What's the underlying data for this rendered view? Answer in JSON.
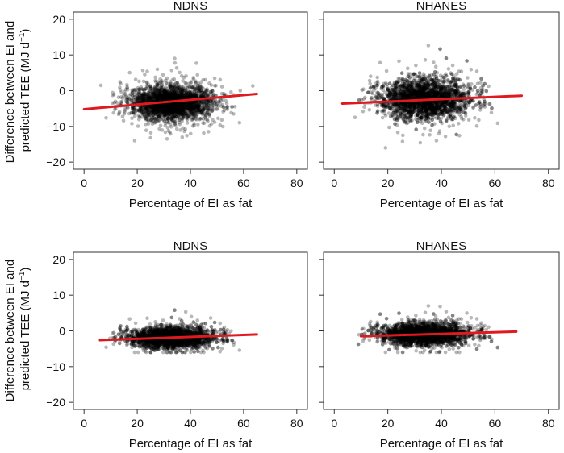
{
  "figure": {
    "y_axis_label_line1": "Difference between EI and",
    "y_axis_label_line2": "predicted TEE (MJ d",
    "y_axis_label_sup": "−1",
    "y_axis_label_close": ")"
  },
  "chart_data": [
    {
      "type": "scatter",
      "title": "NDNS",
      "xlabel": "Percentage of EI as fat",
      "xlim": [
        -4,
        84
      ],
      "ylim": [
        -22,
        22
      ],
      "xticks": [
        0,
        20,
        40,
        60,
        80
      ],
      "yticks": [
        -20,
        -10,
        0,
        10,
        20
      ],
      "grid": false,
      "cloud": {
        "x_center": 33,
        "x_sd": 8,
        "x_range": [
          1,
          66
        ],
        "y_center": -3.5,
        "y_sd": 2.4,
        "y_range": [
          -14,
          11
        ],
        "approx_points": 5000
      },
      "regression_line": {
        "x": [
          0,
          65
        ],
        "y": [
          -5.2,
          -0.9
        ],
        "color": "#e0191f"
      }
    },
    {
      "type": "scatter",
      "title": "NHANES",
      "xlabel": "Percentage of EI as fat",
      "xlim": [
        -4,
        84
      ],
      "ylim": [
        -22,
        22
      ],
      "xticks": [
        0,
        20,
        40,
        60,
        80
      ],
      "yticks": [
        -20,
        -10,
        0,
        10,
        20
      ],
      "grid": false,
      "cloud": {
        "x_center": 34,
        "x_sd": 8.5,
        "x_range": [
          3,
          70
        ],
        "y_center": -2.5,
        "y_sd": 2.9,
        "y_range": [
          -16,
          16
        ],
        "approx_points": 6000
      },
      "regression_line": {
        "x": [
          3,
          70
        ],
        "y": [
          -3.6,
          -1.4
        ],
        "color": "#e0191f"
      }
    },
    {
      "type": "scatter",
      "title": "NDNS",
      "xlabel": "Percentage of EI as fat",
      "xlim": [
        -4,
        84
      ],
      "ylim": [
        -22,
        22
      ],
      "xticks": [
        0,
        20,
        40,
        60,
        80
      ],
      "yticks": [
        -20,
        -10,
        0,
        10,
        20
      ],
      "grid": false,
      "cloud": {
        "x_center": 33,
        "x_sd": 8,
        "x_range": [
          6,
          65
        ],
        "y_center": -2.0,
        "y_sd": 1.5,
        "y_range": [
          -6,
          7
        ],
        "approx_points": 5000
      },
      "regression_line": {
        "x": [
          6,
          65
        ],
        "y": [
          -2.6,
          -1.0
        ],
        "color": "#e0191f"
      }
    },
    {
      "type": "scatter",
      "title": "NHANES",
      "xlabel": "Percentage of EI as fat",
      "xlim": [
        -4,
        84
      ],
      "ylim": [
        -22,
        22
      ],
      "xticks": [
        0,
        20,
        40,
        60,
        80
      ],
      "yticks": [
        -20,
        -10,
        0,
        10,
        20
      ],
      "grid": false,
      "cloud": {
        "x_center": 34,
        "x_sd": 8.5,
        "x_range": [
          9,
          68
        ],
        "y_center": -1.0,
        "y_sd": 1.6,
        "y_range": [
          -6,
          7
        ],
        "approx_points": 6000
      },
      "regression_line": {
        "x": [
          10,
          68
        ],
        "y": [
          -1.5,
          -0.2
        ],
        "color": "#e0191f"
      }
    }
  ]
}
